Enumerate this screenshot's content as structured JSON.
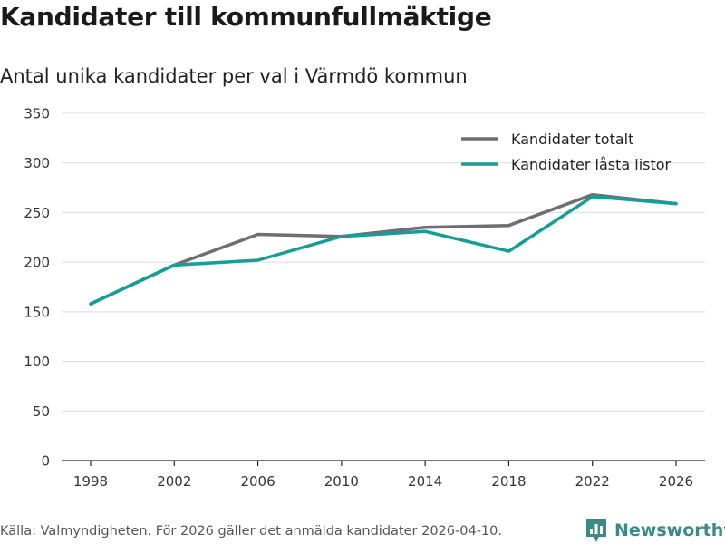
{
  "header": {
    "title": "Kandidater till kommunfullmäktige",
    "subtitle": "Antal unika kandidater per val i Värmdö kommun"
  },
  "chart_data": {
    "type": "line",
    "title": "Kandidater till kommunfullmäktige",
    "subtitle": "Antal unika kandidater per val i Värmdö kommun",
    "xlabel": "",
    "ylabel": "",
    "categories": [
      "1998",
      "2002",
      "2006",
      "2010",
      "2014",
      "2018",
      "2022",
      "2026"
    ],
    "ylim": [
      0,
      350
    ],
    "yticks": [
      0,
      50,
      100,
      150,
      200,
      250,
      300,
      350
    ],
    "grid": true,
    "legend_position": "top-right",
    "series": [
      {
        "name": "Kandidater totalt",
        "color": "#6e6e73",
        "values": [
          158,
          197,
          228,
          226,
          235,
          237,
          268,
          259
        ]
      },
      {
        "name": "Kandidater låsta listor",
        "color": "#169d96",
        "values": [
          158,
          197,
          202,
          226,
          231,
          211,
          266,
          259
        ]
      }
    ]
  },
  "footer": {
    "source": "Källa: Valmyndigheten. För 2026 gäller det anmälda kandidater 2026-04-10.",
    "brand": "Newsworthy",
    "brand_color": "#3a8a86"
  }
}
